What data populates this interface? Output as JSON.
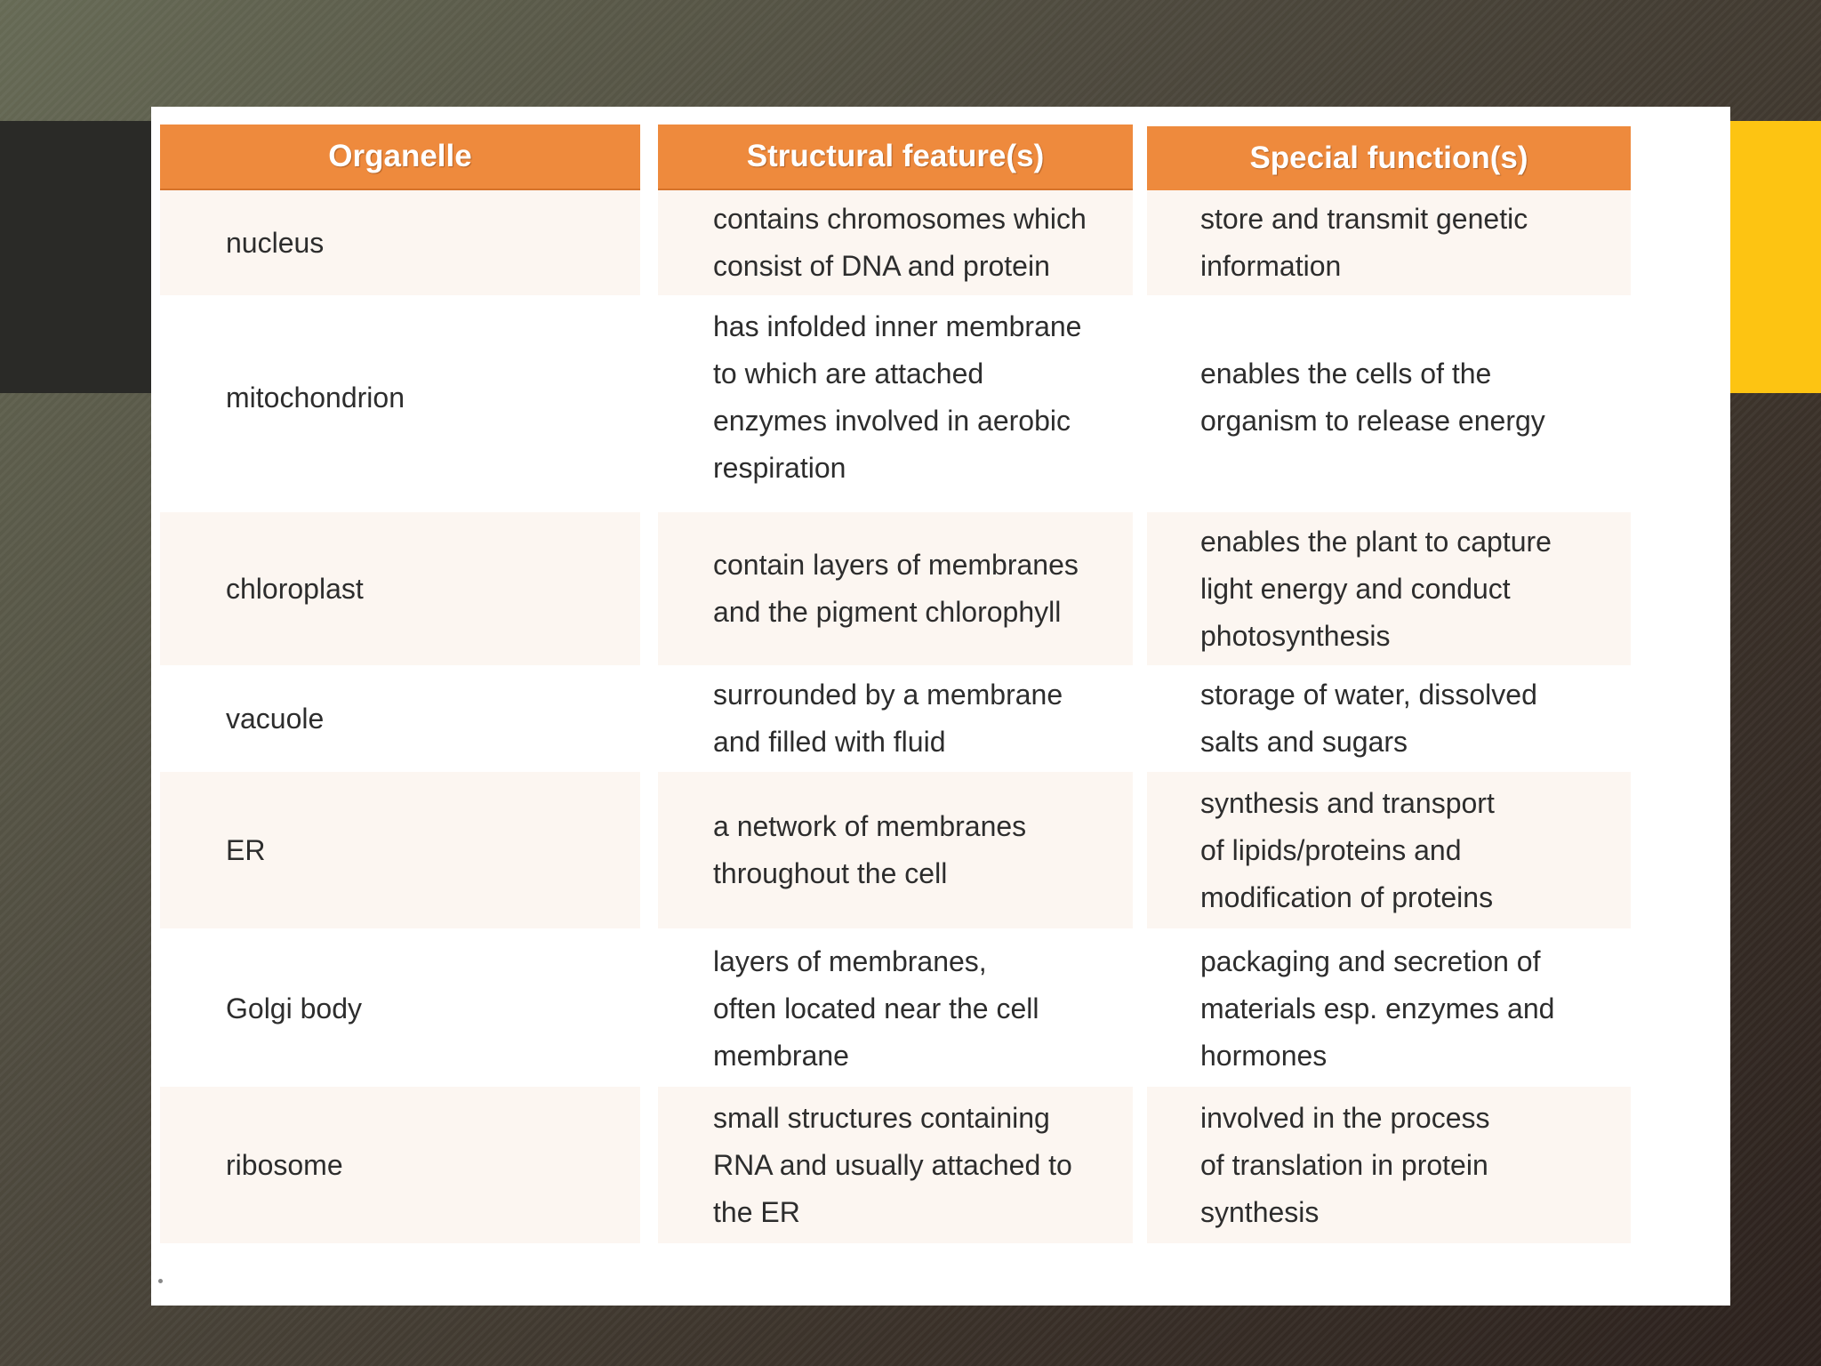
{
  "table": {
    "headers": [
      "Organelle",
      "Structural feature(s)",
      "Special function(s)"
    ],
    "rows": [
      {
        "organelle": "nucleus",
        "structure": "contains chromosomes which\nconsist of DNA and protein",
        "function": "store and transmit genetic\ninformation"
      },
      {
        "organelle": "mitochondrion",
        "structure": "has infolded inner membrane\nto which are attached\nenzymes involved in aerobic\nrespiration",
        "function": "enables the cells of the\norganism to release energy"
      },
      {
        "organelle": "chloroplast",
        "structure": "contain layers of membranes\nand the pigment chlorophyll",
        "function": "enables the plant to capture\nlight energy and conduct\nphotosynthesis"
      },
      {
        "organelle": "vacuole",
        "structure": "surrounded by a membrane\nand filled with fluid",
        "function": "storage of water, dissolved\nsalts and sugars"
      },
      {
        "organelle": "ER",
        "structure": "a network of membranes\nthroughout the cell",
        "function": "synthesis and transport\nof lipids/proteins and\nmodification of proteins"
      },
      {
        "organelle": "Golgi body",
        "structure": "layers of membranes,\noften located near the cell\nmembrane",
        "function": "packaging and secretion of\nmaterials esp. enzymes and\nhormones"
      },
      {
        "organelle": "ribosome",
        "structure": "small structures containing\nRNA and usually attached to\nthe ER",
        "function": "involved in the process\nof translation in protein\nsynthesis"
      }
    ]
  },
  "colors": {
    "header_bg": "#ee8a3d",
    "shaded_row_bg": "#fcf6f1",
    "accent_yellow": "#fdc412"
  }
}
